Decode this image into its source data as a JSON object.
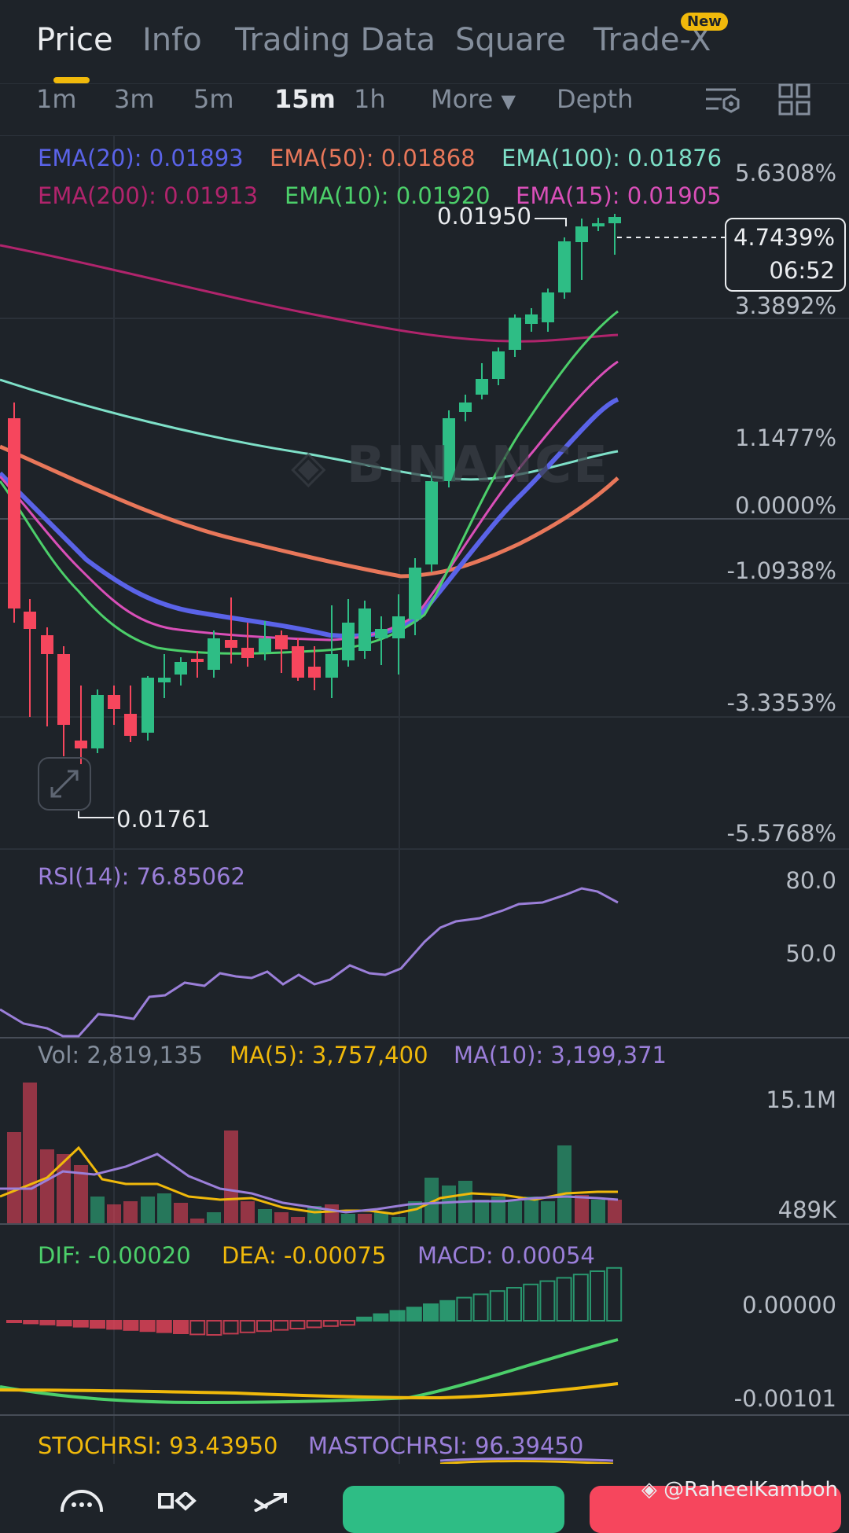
{
  "tabs": [
    "Price",
    "Info",
    "Trading Data",
    "Square",
    "Trade-X"
  ],
  "new_badge": "New",
  "intervals": [
    "1m",
    "3m",
    "5m",
    "15m",
    "1h",
    "More",
    "Depth"
  ],
  "ema": {
    "ema20": "EMA(20): 0.01893",
    "ema50": "EMA(50): 0.01868",
    "ema100": "EMA(100): 0.01876",
    "ema200": "EMA(200): 0.01913",
    "ema10": "EMA(10): 0.01920",
    "ema15": "EMA(15): 0.01905"
  },
  "colors": {
    "ema20": "#5a63e8",
    "ema50": "#e8775a",
    "ema100": "#7ee0c8",
    "ema200": "#b0246c",
    "ema10": "#4ccf6a",
    "ema15": "#d94fb8",
    "up": "#2ebd85",
    "down": "#f6465d",
    "rsi": "#9b7fd9",
    "ma5": "#f0b90b",
    "ma10": "#9b7fd9"
  },
  "price_axis": [
    "5.6308%",
    "3.3892%",
    "1.1477%",
    "0.0000%",
    "-1.0938%",
    "-3.3353%",
    "-5.5768%"
  ],
  "current": {
    "pct": "4.7439%",
    "countdown": "06:52"
  },
  "high_label": "0.01950",
  "low_label": "0.01761",
  "watermark": "BINANCE",
  "rsi": {
    "label": "RSI(14): 76.85062",
    "axis": [
      "80.0",
      "50.0"
    ]
  },
  "volume": {
    "vol": "Vol: 2,819,135",
    "ma5": "MA(5): 3,757,400",
    "ma10": "MA(10): 3,199,371",
    "axis": [
      "15.1M",
      "489K"
    ]
  },
  "macd": {
    "dif": "DIF: -0.00020",
    "dea": "DEA: -0.00075",
    "macd": "MACD: 0.00054",
    "axis": [
      "0.00000",
      "-0.00101"
    ]
  },
  "stochrsi": {
    "label": "STOCHRSI: 93.43950",
    "ma": "MASTOCHRSI: 96.39450"
  },
  "credit": "@RaheelKamboh"
}
